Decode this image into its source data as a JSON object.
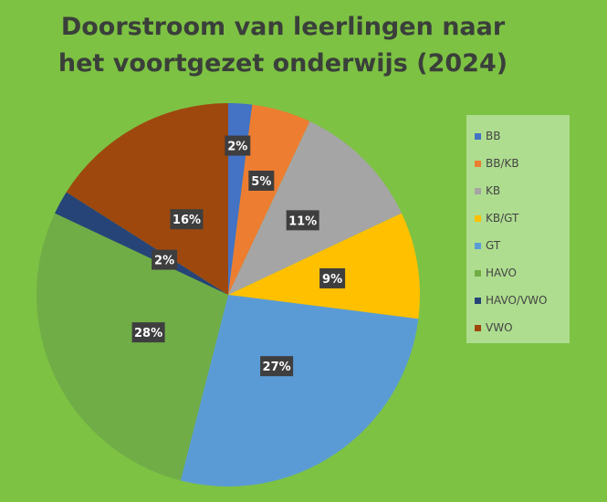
{
  "chart_data": {
    "type": "pie",
    "title_lines": [
      "Doorstroom van leerlingen naar",
      "het voortgezet onderwijs (2024)"
    ],
    "legend_position": "right",
    "slices": [
      {
        "name": "BB",
        "value": 2,
        "label": "2%",
        "color": "#4472c4"
      },
      {
        "name": "BB/KB",
        "value": 5,
        "label": "5%",
        "color": "#ed7d31"
      },
      {
        "name": "KB",
        "value": 11,
        "label": "11%",
        "color": "#a5a5a5"
      },
      {
        "name": "KB/GT",
        "value": 9,
        "label": "9%",
        "color": "#ffc000"
      },
      {
        "name": "GT",
        "value": 27,
        "label": "27%",
        "color": "#5b9bd5"
      },
      {
        "name": "HAVO",
        "value": 28,
        "label": "28%",
        "color": "#70ad47"
      },
      {
        "name": "HAVO/VWO",
        "value": 2,
        "label": "2%",
        "color": "#264478"
      },
      {
        "name": "VWO",
        "value": 16,
        "label": "16%",
        "color": "#9e480e"
      }
    ]
  }
}
